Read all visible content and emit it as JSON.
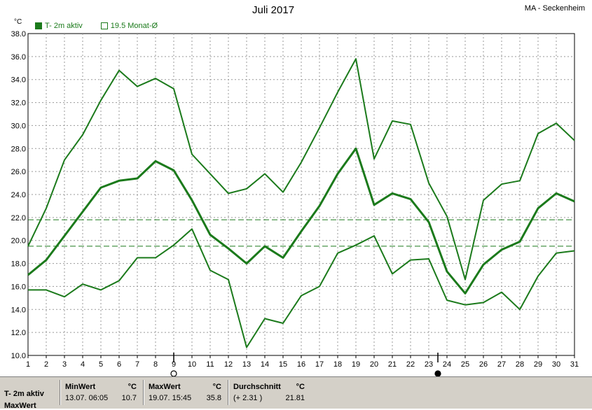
{
  "header": {
    "title": "Juli 2017",
    "station": "MA - Seckenheim",
    "unit": "°C"
  },
  "legend": [
    {
      "label": "T- 2m aktiv",
      "filled": true
    },
    {
      "label": "19.5 Monat-Ø",
      "filled": false
    }
  ],
  "colors": {
    "series": "#1b7a1b",
    "grid": "#999999",
    "footer_bg": "#d4d0c8"
  },
  "chart_data": {
    "type": "line",
    "title": "Juli 2017",
    "ylabel": "°C",
    "ylim": [
      10,
      38
    ],
    "yticks": [
      "10.0",
      "12.0",
      "14.0",
      "16.0",
      "18.0",
      "20.0",
      "22.0",
      "24.0",
      "26.0",
      "28.0",
      "30.0",
      "32.0",
      "34.0",
      "36.0",
      "38.0"
    ],
    "x": [
      1,
      2,
      3,
      4,
      5,
      6,
      7,
      8,
      9,
      10,
      11,
      12,
      13,
      14,
      15,
      16,
      17,
      18,
      19,
      20,
      21,
      22,
      23,
      24,
      25,
      26,
      27,
      28,
      29,
      30,
      31
    ],
    "grid": true,
    "legend_position": "top-left",
    "series": [
      {
        "role": "max",
        "values": [
          19.5,
          22.8,
          27.0,
          29.2,
          32.2,
          34.8,
          33.4,
          34.1,
          33.2,
          27.5,
          25.8,
          24.1,
          24.5,
          25.8,
          24.2,
          26.8,
          29.8,
          32.9,
          35.8,
          27.1,
          30.4,
          30.1,
          25.0,
          22.1,
          16.6,
          23.5,
          24.9,
          25.2,
          29.3,
          30.2,
          28.7
        ]
      },
      {
        "role": "mean",
        "name": "T- 2m aktiv",
        "values": [
          17.0,
          18.3,
          20.4,
          22.5,
          24.6,
          25.2,
          25.4,
          26.9,
          26.1,
          23.5,
          20.5,
          19.3,
          18.0,
          19.5,
          18.5,
          20.8,
          23.0,
          25.8,
          28.0,
          23.1,
          24.1,
          23.6,
          21.6,
          17.3,
          15.4,
          17.9,
          19.2,
          19.9,
          22.8,
          24.1,
          23.4
        ]
      },
      {
        "role": "min",
        "values": [
          15.7,
          15.7,
          15.1,
          16.2,
          15.7,
          16.5,
          18.5,
          18.5,
          19.6,
          21.0,
          17.4,
          16.6,
          10.7,
          13.2,
          12.8,
          15.2,
          16.0,
          18.9,
          19.6,
          20.4,
          17.1,
          18.3,
          18.4,
          14.8,
          14.4,
          14.6,
          15.5,
          14.0,
          16.9,
          18.9,
          19.1
        ]
      }
    ],
    "reference_lines": [
      {
        "label": "19.5 Monat-Ø",
        "value": 19.5
      },
      {
        "value": 21.8
      }
    ],
    "markers": [
      {
        "x": 9,
        "symbol": "new-moon-open"
      },
      {
        "x": 23.5,
        "symbol": "full-moon-filled"
      }
    ]
  },
  "footer": {
    "row_label": "T- 2m aktiv",
    "row_label_2": "MaxWert",
    "min": {
      "header": "MinWert",
      "unit": "°C",
      "date": "13.07.  06:05",
      "value": "10.7"
    },
    "max": {
      "header": "MaxWert",
      "unit": "°C",
      "date": "19.07.  15:45",
      "value": "35.8"
    },
    "avg": {
      "header": "Durchschnitt",
      "unit": "°C",
      "date": "(+ 2.31 )",
      "value": "21.81"
    }
  }
}
